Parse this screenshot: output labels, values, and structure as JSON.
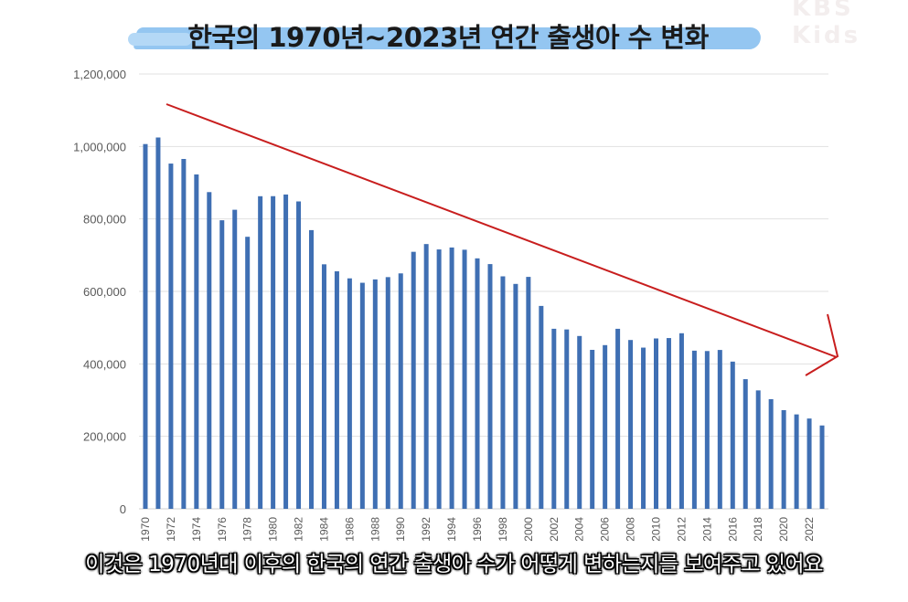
{
  "watermark": "KBS Kids",
  "caption": "이것은 1970년대 이후의 한국의 연간 출생아 수가 어떻게 변하는지를 보여주고 있어요",
  "colors": {
    "bar": "#3f6fb3",
    "trend_arrow": "#c81e1e",
    "gridline": "#e1e1e1",
    "title_brush": "#8ec3f0"
  },
  "chart_data": {
    "type": "bar",
    "title": "한국의 1970년~2023년 연간 출생아 수 변화",
    "xlabel": "",
    "ylabel": "",
    "ylim": [
      0,
      1200000
    ],
    "yticks": [
      "0",
      "200,000",
      "400,000",
      "600,000",
      "800,000",
      "1,000,000",
      "1,200,000"
    ],
    "ytick_values": [
      0,
      200000,
      400000,
      600000,
      800000,
      1000000,
      1200000
    ],
    "grid": true,
    "legend": "none",
    "trend_arrow": {
      "direction": "decreasing"
    },
    "categories": [
      "1970",
      "1971",
      "1972",
      "1973",
      "1974",
      "1975",
      "1976",
      "1977",
      "1978",
      "1979",
      "1980",
      "1981",
      "1982",
      "1983",
      "1984",
      "1985",
      "1986",
      "1987",
      "1988",
      "1989",
      "1990",
      "1991",
      "1992",
      "1993",
      "1994",
      "1995",
      "1996",
      "1997",
      "1998",
      "1999",
      "2000",
      "2001",
      "2002",
      "2003",
      "2004",
      "2005",
      "2006",
      "2007",
      "2008",
      "2009",
      "2010",
      "2011",
      "2012",
      "2013",
      "2014",
      "2015",
      "2016",
      "2017",
      "2018",
      "2019",
      "2020",
      "2021",
      "2022",
      "2023"
    ],
    "xtick_labels": [
      "1970",
      "",
      "1972",
      "",
      "1974",
      "",
      "1976",
      "",
      "1978",
      "",
      "1980",
      "",
      "1982",
      "",
      "1984",
      "",
      "1986",
      "",
      "1988",
      "",
      "1990",
      "",
      "1992",
      "",
      "1994",
      "",
      "1996",
      "",
      "1998",
      "",
      "2000",
      "",
      "2002",
      "",
      "2004",
      "",
      "2006",
      "",
      "2008",
      "",
      "2010",
      "",
      "2012",
      "",
      "2014",
      "",
      "2016",
      "",
      "2018",
      "",
      "2020",
      "",
      "2022",
      ""
    ],
    "values": [
      1006645,
      1024773,
      952780,
      965521,
      922823,
      874030,
      796331,
      825339,
      750728,
      862669,
      862835,
      867409,
      848312,
      769155,
      674793,
      655489,
      636019,
      623831,
      633092,
      639431,
      649738,
      709275,
      730678,
      715826,
      721185,
      715020,
      691226,
      675394,
      641594,
      620668,
      640089,
      559934,
      496911,
      495036,
      476958,
      438707,
      451759,
      496822,
      465892,
      444849,
      470171,
      471265,
      484550,
      436455,
      435435,
      438420,
      406243,
      357771,
      326822,
      302676,
      272337,
      260562,
      249186,
      230028
    ]
  }
}
